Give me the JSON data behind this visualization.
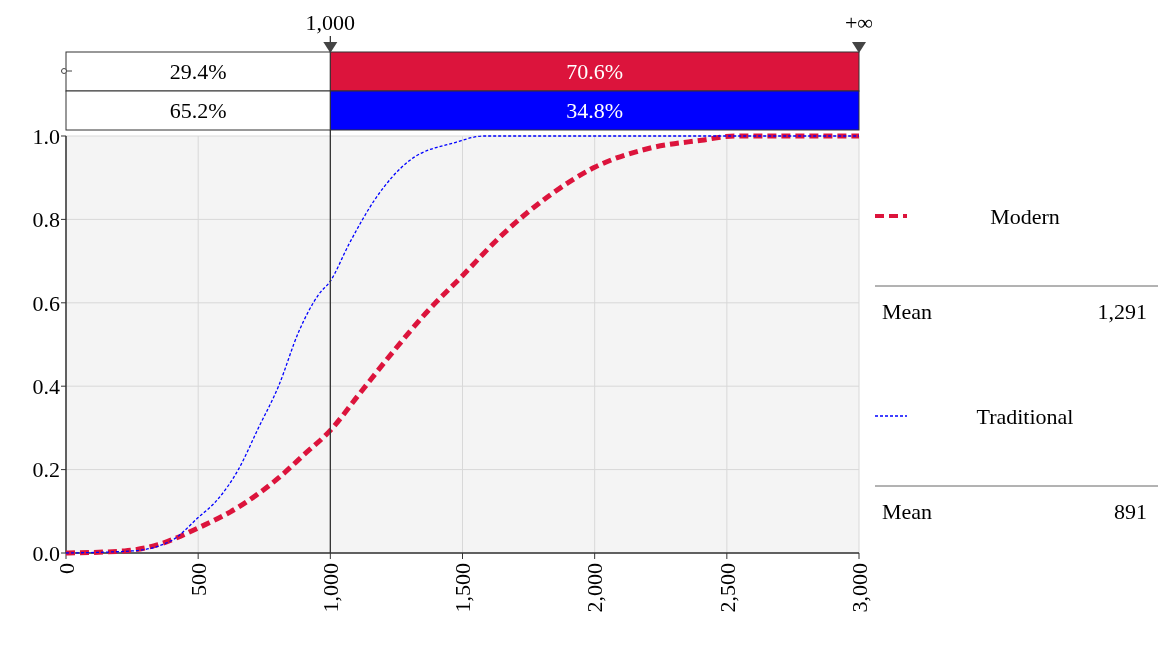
{
  "chart_data": {
    "type": "line",
    "xlim": [
      0,
      3000
    ],
    "ylim": [
      0,
      1
    ],
    "xticks": [
      0,
      500,
      {
        "value": 1000,
        "label": "1,000"
      },
      {
        "value": 1500,
        "label": "1,500"
      },
      {
        "value": 2000,
        "label": "2,000"
      },
      {
        "value": 2500,
        "label": "2,500"
      },
      {
        "value": 3000,
        "label": "3,000"
      }
    ],
    "yticks": [
      {
        "value": 0,
        "label": "0.0"
      },
      {
        "value": 0.2,
        "label": "0.2"
      },
      {
        "value": 0.4,
        "label": "0.4"
      },
      {
        "value": 0.6,
        "label": "0.6"
      },
      {
        "value": 0.8,
        "label": "0.8"
      },
      {
        "value": 1,
        "label": "1.0"
      }
    ],
    "grid": true,
    "legend": "right",
    "line_style": "dashed",
    "series": [
      {
        "name": "Modern",
        "color": "#dc143c",
        "x": [
          0,
          222,
          348,
          500,
          652,
          804,
          899,
          1000,
          1108,
          1234,
          1361,
          1500,
          1645,
          1835,
          2000,
          2203,
          2405,
          2532,
          3000
        ],
        "values": [
          0,
          0.005,
          0.02,
          0.06,
          0.11,
          0.18,
          0.235,
          0.294,
          0.38,
          0.48,
          0.575,
          0.665,
          0.76,
          0.86,
          0.925,
          0.97,
          0.99,
          1,
          1
        ]
      },
      {
        "name": "Traditional",
        "color": "#0000ff",
        "x": [
          0,
          250,
          400,
          500,
          576,
          652,
          728,
          804,
          880,
          956,
          1000,
          1070,
          1171,
          1297,
          1475,
          1580,
          3000
        ],
        "values": [
          0,
          0.005,
          0.03,
          0.085,
          0.13,
          0.2,
          0.3,
          0.4,
          0.53,
          0.62,
          0.652,
          0.74,
          0.85,
          0.94,
          0.985,
          1,
          1
        ]
      }
    ],
    "ref_lines": [
      {
        "axis": "x",
        "value": 1000,
        "label": "1,000"
      }
    ],
    "annotations": [
      "29.4%",
      "70.6%",
      "65.2%",
      "34.8%",
      "+∞",
      "Mean",
      "1,291",
      "Mean",
      "891"
    ]
  }
}
